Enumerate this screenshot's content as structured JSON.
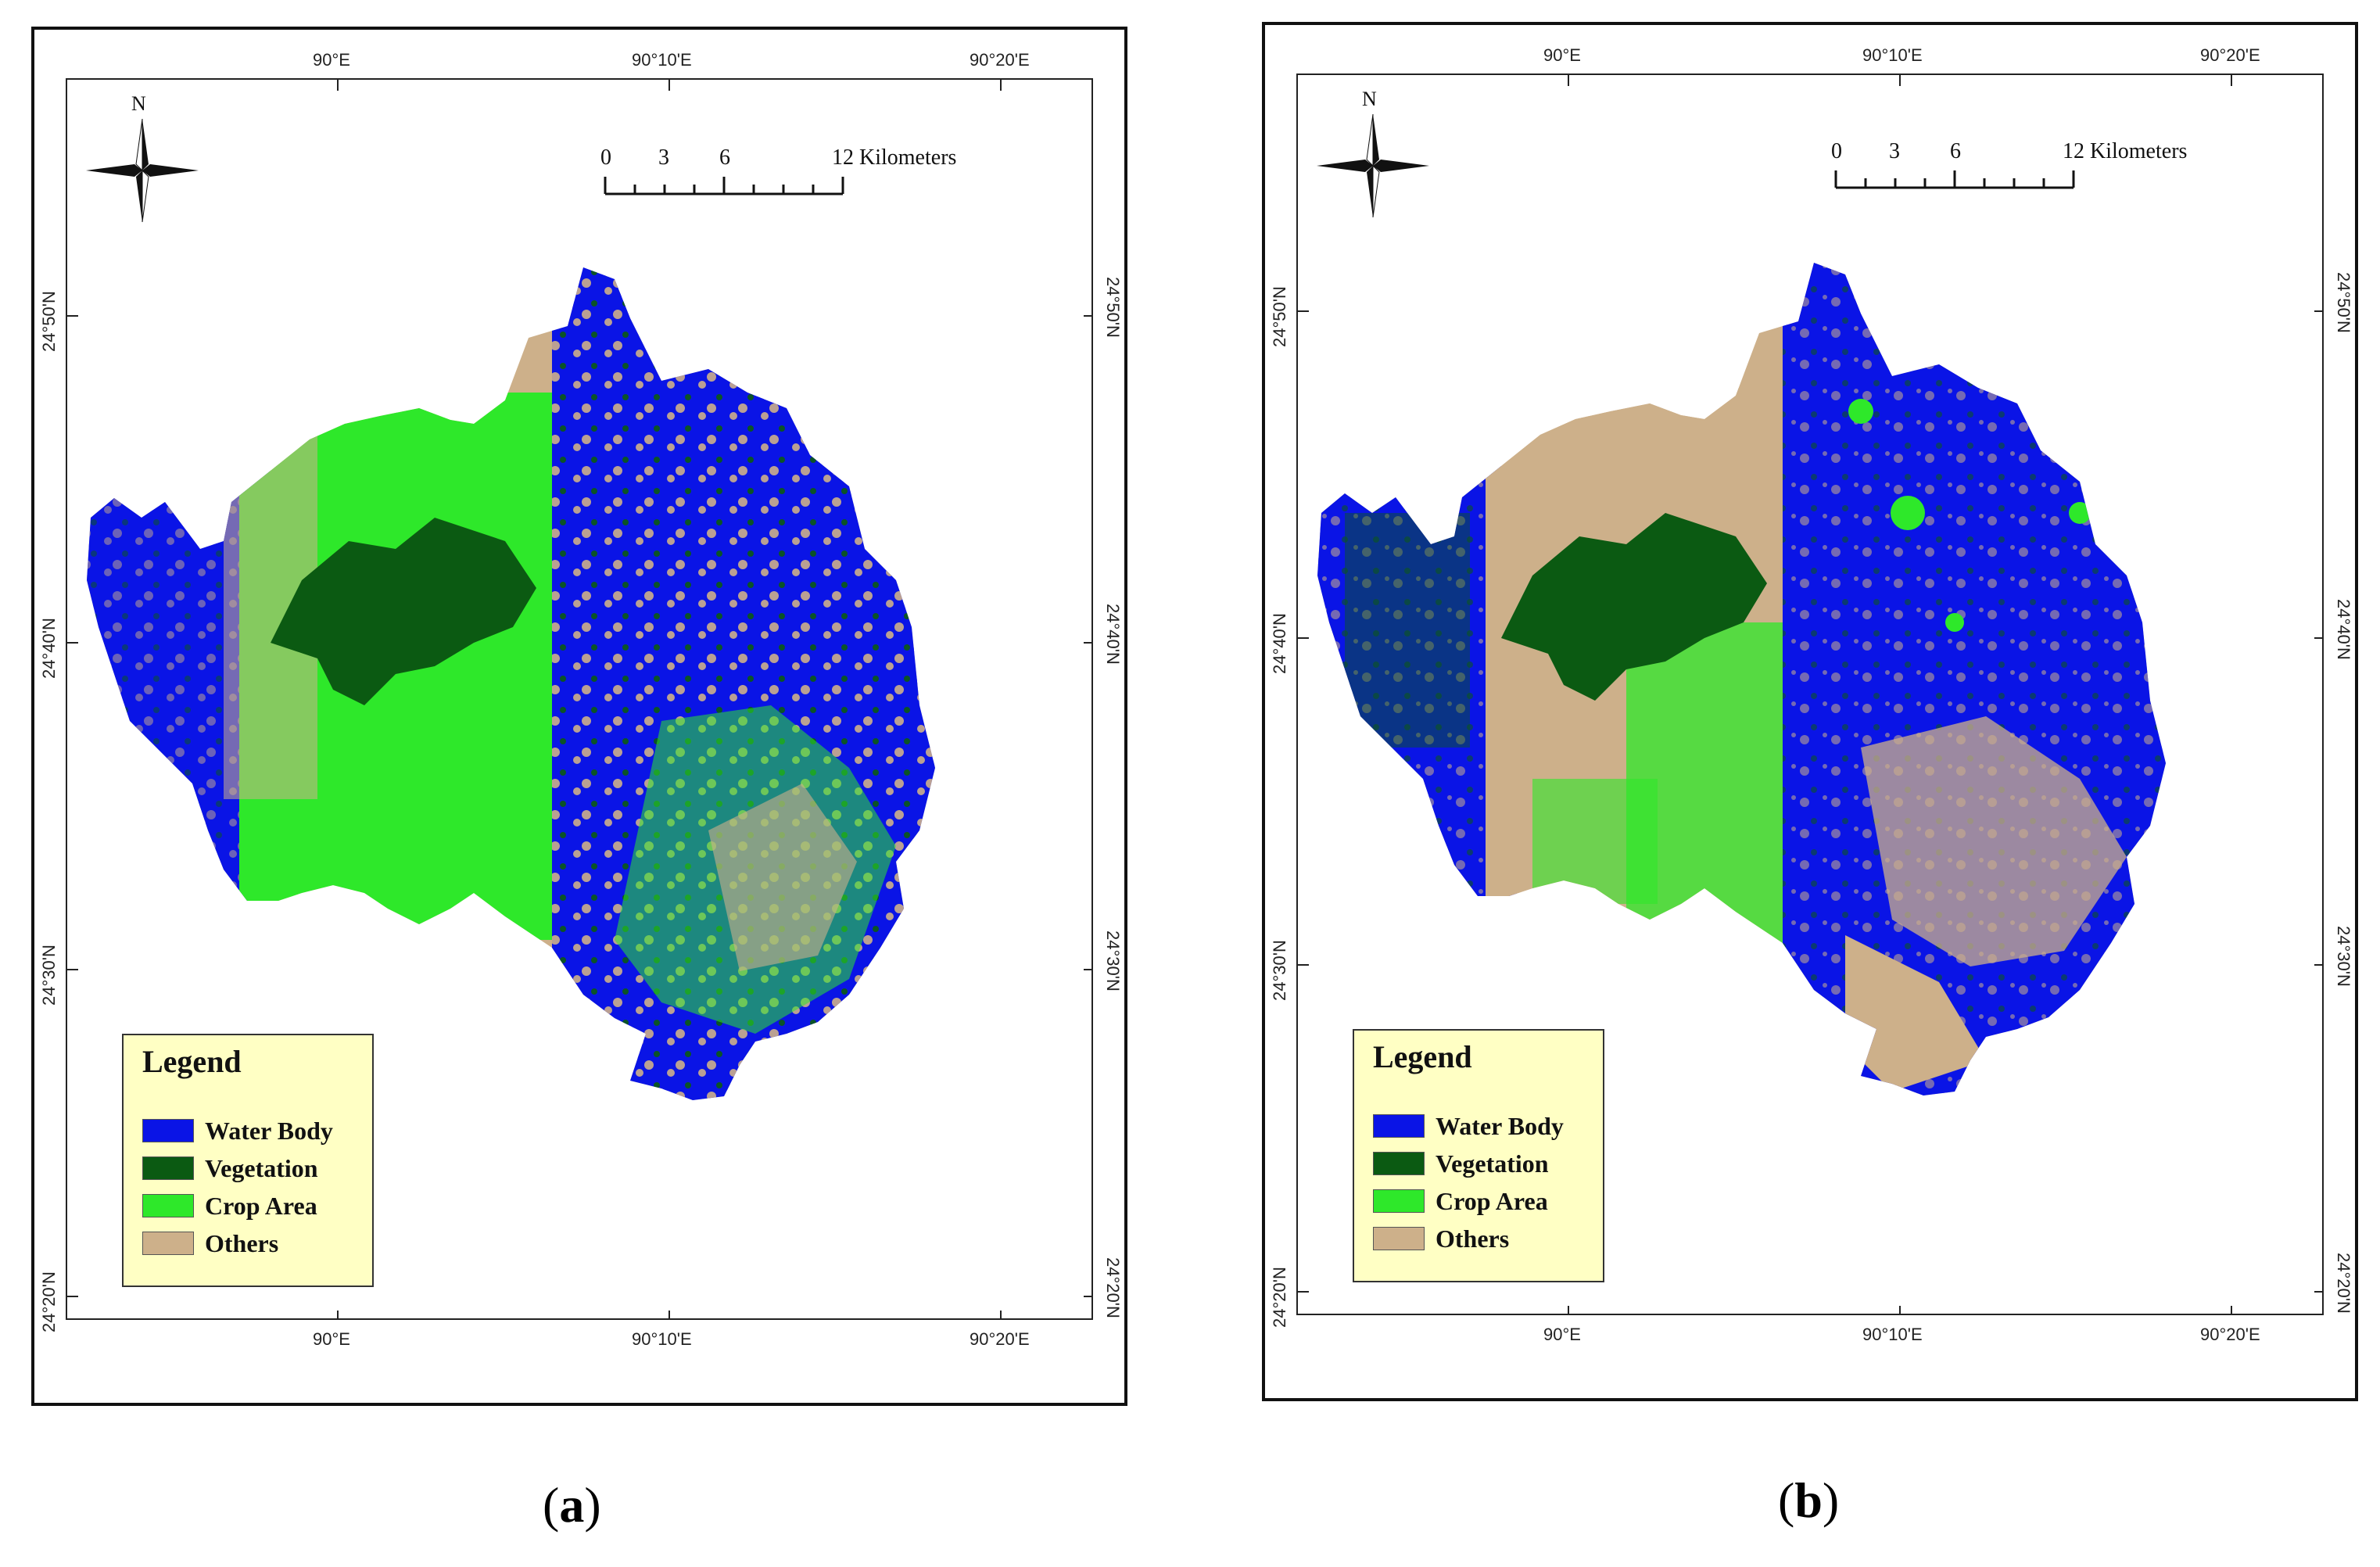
{
  "panels": [
    {
      "caption_open": "(",
      "caption_letter": "a",
      "caption_close": ")",
      "north_label": "N",
      "scale": {
        "ticks": [
          "0",
          "3",
          "6",
          "12 Kilometers"
        ]
      },
      "lon_labels": [
        "90°E",
        "90°10'E",
        "90°20'E"
      ],
      "lat_labels": [
        "24°50'N",
        "24°40'N",
        "24°30'N",
        "24°20'N"
      ],
      "legend": {
        "title": "Legend",
        "items": [
          {
            "label": "Water Body",
            "color": "#0a14e6"
          },
          {
            "label": "Vegetation",
            "color": "#0b5a12"
          },
          {
            "label": "Crop Area",
            "color": "#2ee82a"
          },
          {
            "label": "Others",
            "color": "#cdb08a"
          }
        ]
      }
    },
    {
      "caption_open": "(",
      "caption_letter": "b",
      "caption_close": ")",
      "north_label": "N",
      "scale": {
        "ticks": [
          "0",
          "3",
          "6",
          "12 Kilometers"
        ]
      },
      "lon_labels": [
        "90°E",
        "90°10'E",
        "90°20'E"
      ],
      "lat_labels": [
        "24°50'N",
        "24°40'N",
        "24°30'N",
        "24°20'N"
      ],
      "legend": {
        "title": "Legend",
        "items": [
          {
            "label": "Water Body",
            "color": "#0a14e6"
          },
          {
            "label": "Vegetation",
            "color": "#0b5a12"
          },
          {
            "label": "Crop Area",
            "color": "#2ee82a"
          },
          {
            "label": "Others",
            "color": "#cdb08a"
          }
        ]
      }
    }
  ]
}
